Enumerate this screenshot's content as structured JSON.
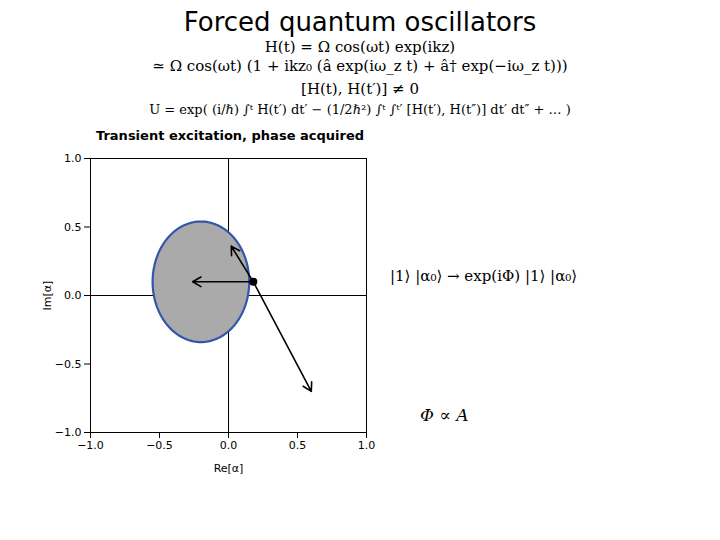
{
  "chart_data": {
    "type": "phase_space",
    "title": "Forced quantum oscillators",
    "equations": [
      "H(t) = Ω cos(ωt) exp(ikz)",
      "≃ Ω cos(ωt) (1 + ikz₀ (â exp(iω_z t) + â† exp(−iω_z t)))",
      "[H(t), H(t′)] ≠ 0",
      "U = exp( (i/ℏ) ∫ᵗ H(t′) dt′ − (1/2ℏ²) ∫ᵗ ∫ᵗ′ [H(t′), H(t″)] dt′ dt″ + … )"
    ],
    "subtitle": "Transient excitation, phase acquired",
    "x_label": "Re[α]",
    "y_label": "Im[α]",
    "xlim": [
      -1.0,
      1.0
    ],
    "ylim": [
      -1.0,
      1.0
    ],
    "xticks": [
      {
        "value": -1.0,
        "label": "−1.0"
      },
      {
        "value": -0.5,
        "label": "−0.5"
      },
      {
        "value": 0.0,
        "label": "0.0"
      },
      0.5,
      {
        "value": 1.0,
        "label": "1.0"
      }
    ],
    "yticks": [
      {
        "value": -1.0,
        "label": "−1.0"
      },
      {
        "value": -0.5,
        "label": "−0.5"
      },
      {
        "value": 0.0,
        "label": "0.0"
      },
      0.5,
      {
        "value": 1.0,
        "label": "1.0"
      }
    ],
    "rules": {
      "x": [
        0
      ],
      "y": [
        0
      ],
      "color": "#000000"
    },
    "ellipse": {
      "cx": -0.2,
      "cy": 0.1,
      "width": 0.7,
      "height": 0.88,
      "color": "#aaaaaa",
      "edge_color": "#3355aa"
    },
    "dot": {
      "x": 0.18,
      "y": 0.1,
      "color": "#000000"
    },
    "arrows": [
      {
        "x1": 0.18,
        "y1": 0.1,
        "x2": -0.26,
        "y2": 0.1,
        "color": "#000000"
      },
      {
        "x1": 0.18,
        "y1": 0.1,
        "x2": 0.02,
        "y2": 0.36,
        "color": "#000000"
      },
      {
        "x1": 0.18,
        "y1": 0.1,
        "x2": 0.6,
        "y2": -0.7,
        "color": "#000000"
      }
    ],
    "annotations": [
      "|1⟩ |α₀⟩ → exp(iΦ) |1⟩ |α₀⟩",
      "Φ ∝ A"
    ]
  }
}
